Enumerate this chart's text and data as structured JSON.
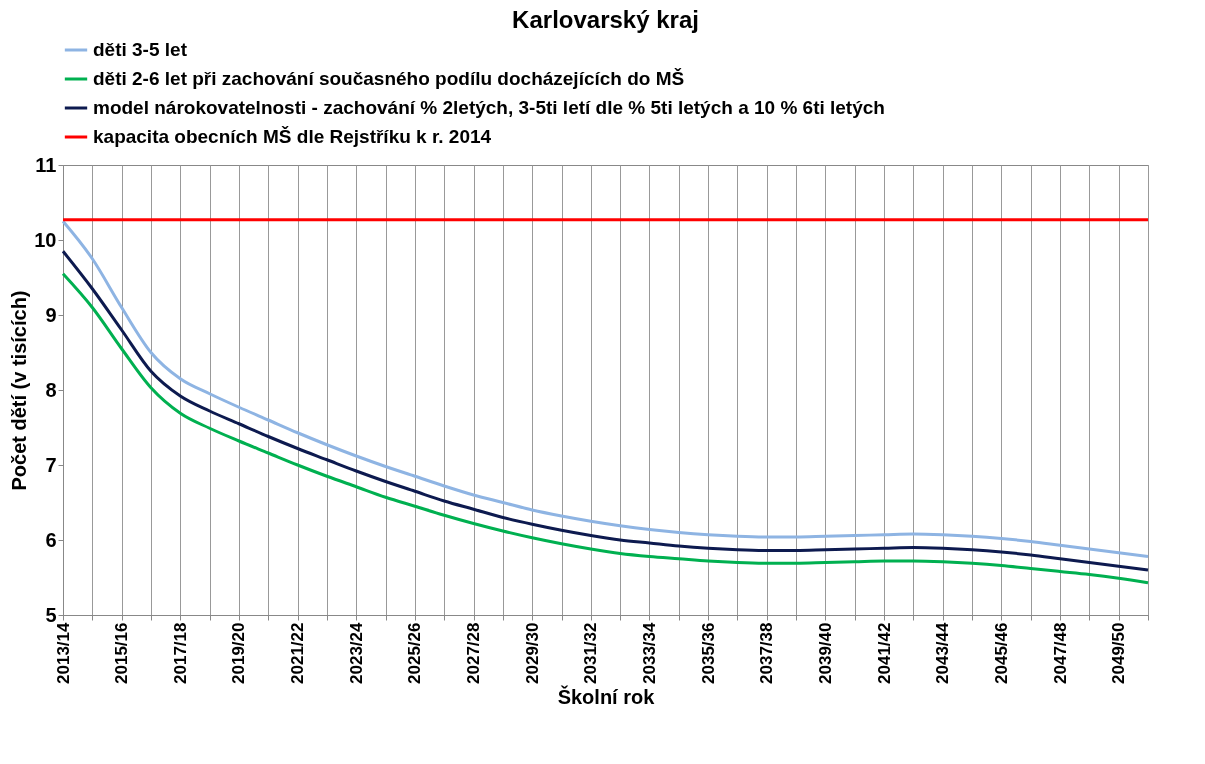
{
  "chart_data": {
    "type": "line",
    "title": "Karlovarský kraj",
    "xlabel": "Školní rok",
    "ylabel": "Počet dětí (v tisících)",
    "categories": [
      "2013/14",
      null,
      "2015/16",
      null,
      "2017/18",
      null,
      "2019/20",
      null,
      "2021/22",
      null,
      "2023/24",
      null,
      "2025/26",
      null,
      "2027/28",
      null,
      "2029/30",
      null,
      "2031/32",
      null,
      "2033/34",
      null,
      "2035/36",
      null,
      "2037/38",
      null,
      "2039/40",
      null,
      "2041/42",
      null,
      "2043/44",
      null,
      "2045/46",
      null,
      "2047/48",
      null,
      "2049/50",
      null
    ],
    "series": [
      {
        "name": "děti 3-5 let",
        "color": "#8eb4e3",
        "values": [
          10.25,
          9.75,
          9.1,
          8.5,
          8.15,
          7.95,
          7.77,
          7.6,
          7.43,
          7.27,
          7.12,
          6.98,
          6.85,
          6.72,
          6.6,
          6.5,
          6.4,
          6.32,
          6.25,
          6.19,
          6.14,
          6.1,
          6.07,
          6.05,
          6.04,
          6.04,
          6.05,
          6.06,
          6.07,
          6.08,
          6.07,
          6.05,
          6.02,
          5.98,
          5.93,
          5.88,
          5.83,
          5.78
        ]
      },
      {
        "name": "děti 2-6 let při zachování současného podílu docházejících do MŠ",
        "color": "#00b050",
        "values": [
          9.55,
          9.1,
          8.55,
          8.03,
          7.69,
          7.49,
          7.32,
          7.16,
          7.0,
          6.85,
          6.71,
          6.57,
          6.45,
          6.33,
          6.22,
          6.12,
          6.03,
          5.95,
          5.88,
          5.82,
          5.78,
          5.75,
          5.72,
          5.7,
          5.69,
          5.69,
          5.7,
          5.71,
          5.72,
          5.72,
          5.71,
          5.69,
          5.66,
          5.62,
          5.58,
          5.54,
          5.49,
          5.43
        ]
      },
      {
        "name": "model nárokovatelnosti - zachování % 2letých, 3-5ti letí dle % 5ti letých a 10 % 6ti letých",
        "color": "#0d1a4f",
        "values": [
          9.85,
          9.35,
          8.8,
          8.25,
          7.92,
          7.72,
          7.55,
          7.38,
          7.22,
          7.07,
          6.92,
          6.78,
          6.65,
          6.52,
          6.41,
          6.3,
          6.21,
          6.13,
          6.06,
          6.0,
          5.96,
          5.92,
          5.89,
          5.87,
          5.86,
          5.86,
          5.87,
          5.88,
          5.89,
          5.9,
          5.89,
          5.87,
          5.84,
          5.8,
          5.75,
          5.7,
          5.65,
          5.6
        ]
      },
      {
        "name": "kapacita obecních MŠ dle Rejstříku k r. 2014",
        "color": "#ff0000",
        "values": [
          10.27,
          10.27,
          10.27,
          10.27,
          10.27,
          10.27,
          10.27,
          10.27,
          10.27,
          10.27,
          10.27,
          10.27,
          10.27,
          10.27,
          10.27,
          10.27,
          10.27,
          10.27,
          10.27,
          10.27,
          10.27,
          10.27,
          10.27,
          10.27,
          10.27,
          10.27,
          10.27,
          10.27,
          10.27,
          10.27,
          10.27,
          10.27,
          10.27,
          10.27,
          10.27,
          10.27,
          10.27,
          10.27
        ]
      }
    ],
    "ylim": [
      5,
      11
    ],
    "yticks": [
      5,
      6,
      7,
      8,
      9,
      10,
      11
    ],
    "grid": "x",
    "legend": "top left",
    "marker": "none"
  }
}
